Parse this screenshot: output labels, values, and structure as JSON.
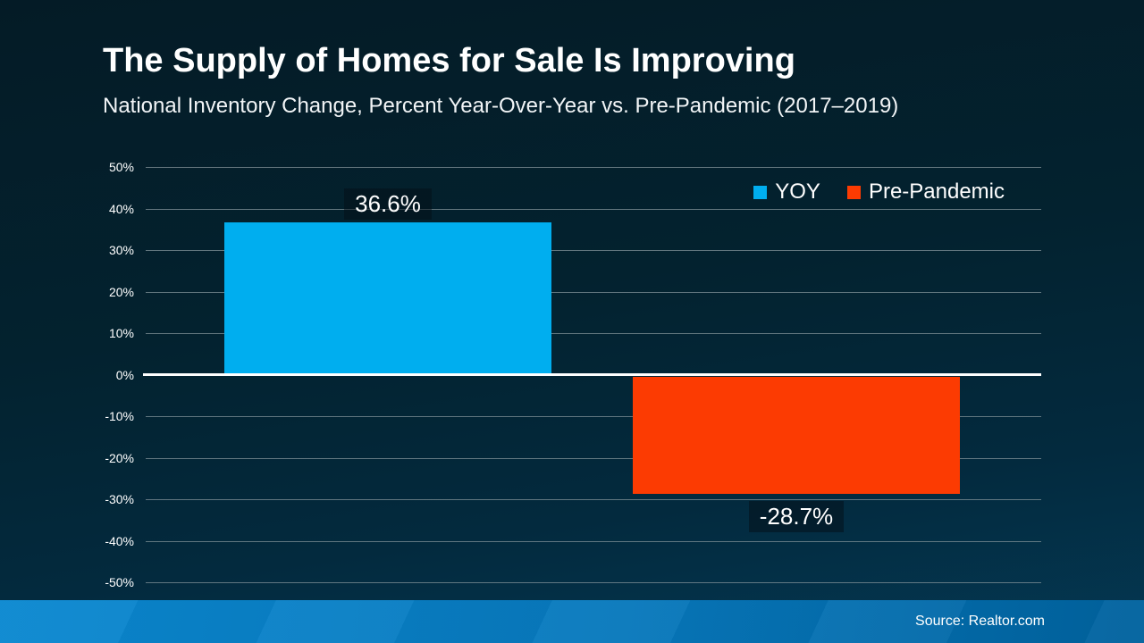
{
  "header": {
    "title": "The Supply of Homes for Sale Is Improving",
    "subtitle": "National Inventory Change, Percent Year-Over-Year vs. Pre-Pandemic (2017–2019)"
  },
  "footer": {
    "source": "Source: Realtor.com"
  },
  "colors": {
    "background_top": "#041B26",
    "background_bottom": "#04405F",
    "yoy_blue": "#00AEEF",
    "pre_pandemic_orange": "#FC3B02",
    "gridline": "#829198",
    "zero_line": "#FFFFFF",
    "footer_blue_left": "#0A88D0",
    "footer_blue_right": "#00629E",
    "text": "#FFFFFF"
  },
  "chart_data": {
    "type": "bar",
    "title": "The Supply of Homes for Sale Is Improving",
    "subtitle": "National Inventory Change, Percent Year-Over-Year vs. Pre-Pandemic (2017–2019)",
    "categories": [
      "YOY",
      "Pre-Pandemic"
    ],
    "values": [
      36.6,
      -28.7
    ],
    "data_labels": [
      "36.6%",
      "-28.7%"
    ],
    "bar_colors": [
      "#00AEEF",
      "#FC3B02"
    ],
    "xlabel": "",
    "ylabel": "",
    "ylim": [
      -50,
      50
    ],
    "ytick_step": 10,
    "ytick_labels": [
      "50%",
      "40%",
      "30%",
      "20%",
      "10%",
      "0%",
      "-10%",
      "-20%",
      "-30%",
      "-40%",
      "-50%"
    ],
    "grid": true,
    "zero_line_emphasized": true,
    "legend": {
      "position": "top-right",
      "entries": [
        {
          "label": "YOY",
          "color": "#00AEEF"
        },
        {
          "label": "Pre-Pandemic",
          "color": "#FC3B02"
        }
      ]
    }
  }
}
